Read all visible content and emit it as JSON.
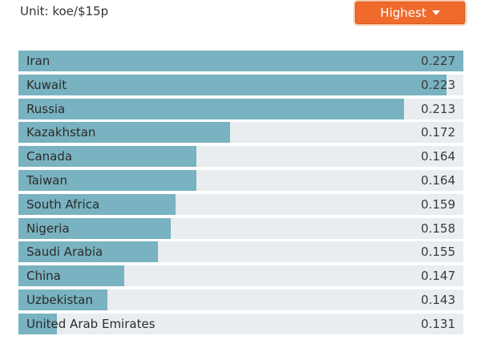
{
  "header": {
    "unit_label": "Unit: koe/$15p",
    "sort_label": "Highest",
    "sort_icon": "caret-down-icon"
  },
  "colors": {
    "bar_fill": "#79b2c1",
    "bar_track": "#e9edf0",
    "button_bg": "#ef6a2c"
  },
  "chart_data": {
    "type": "bar",
    "orientation": "horizontal",
    "categories": [
      "Iran",
      "Kuwait",
      "Russia",
      "Kazakhstan",
      "Canada",
      "Taiwan",
      "South Africa",
      "Nigeria",
      "Saudi Arabia",
      "China",
      "Uzbekistan",
      "United Arab Emirates"
    ],
    "values": [
      0.227,
      0.223,
      0.213,
      0.172,
      0.164,
      0.164,
      0.159,
      0.158,
      0.155,
      0.147,
      0.143,
      0.131
    ],
    "value_labels": [
      "0.227",
      "0.223",
      "0.213",
      "0.172",
      "0.164",
      "0.164",
      "0.159",
      "0.158",
      "0.155",
      "0.147",
      "0.143",
      "0.131"
    ],
    "xlim": [
      0.122,
      0.227
    ],
    "sort": "descending"
  }
}
